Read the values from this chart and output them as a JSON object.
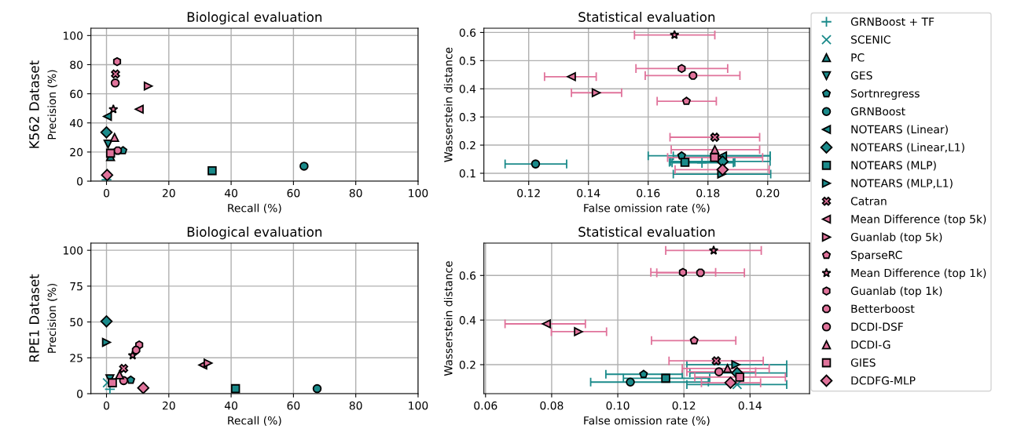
{
  "chart_data": [
    {
      "type": "scatter",
      "title": "Biological evaluation",
      "xlabel": "Recall (%)",
      "ylabel": "Precision (%)",
      "annotations": [
        "K562 Dataset"
      ],
      "xlim": [
        -5,
        100
      ],
      "ylim": [
        0,
        105
      ],
      "xticks": [
        0,
        20,
        40,
        60,
        80,
        100
      ],
      "yticks": [
        0,
        20,
        40,
        60,
        80,
        100
      ],
      "grid": true,
      "series": [
        {
          "color": "#1a8a8a",
          "marker": "cross",
          "x": [
            0
          ],
          "values": [
            1
          ]
        },
        {
          "color": "#1a8a8a",
          "marker": "cross",
          "x": [
            null
          ],
          "values": [
            null
          ]
        },
        {
          "color": "#1a8a8a",
          "marker": "triangle",
          "x": [
            1.3
          ],
          "values": [
            16.8
          ]
        },
        {
          "color": "#1a8a8a",
          "x": [
            0.5
          ],
          "values": [
            25.5
          ]
        },
        {
          "color": "#1a8a8a",
          "x": [
            5.3
          ],
          "values": [
            21
          ]
        },
        {
          "color": "#1a8a8a",
          "marker": "circle",
          "x": [
            63.4
          ],
          "values": [
            10.3
          ]
        },
        {
          "color": "#1a8a8a",
          "x": [
            0.3
          ],
          "values": [
            44.5
          ]
        },
        {
          "color": "#1a8a8a",
          "marker": "diamond",
          "x": [
            0
          ],
          "values": [
            33.5
          ]
        },
        {
          "color": "#1a8a8a",
          "marker": "square",
          "x": [
            33.9
          ],
          "values": [
            7.2
          ]
        },
        {
          "color": "#1a8a8a",
          "x": [
            null
          ],
          "values": [
            null
          ]
        },
        {
          "color": "#e0739b",
          "x": [
            2.9
          ],
          "values": [
            73.6
          ]
        },
        {
          "color": "#e0739b",
          "x": [
            10.5
          ],
          "values": [
            49.4
          ]
        },
        {
          "color": "#e0739b",
          "x": [
            13.4
          ],
          "values": [
            65.3
          ]
        },
        {
          "color": "#e0739b",
          "x": [
            null
          ],
          "values": [
            null
          ]
        },
        {
          "color": "#e0739b",
          "marker": "star",
          "x": [
            2.2
          ],
          "values": [
            49.4
          ]
        },
        {
          "color": "#e0739b",
          "x": [
            3.4
          ],
          "values": [
            82.1
          ]
        },
        {
          "color": "#e0739b",
          "x": [
            3.6
          ],
          "values": [
            21
          ]
        },
        {
          "color": "#e0739b",
          "marker": "circle",
          "x": [
            2.8
          ],
          "values": [
            67.4
          ]
        },
        {
          "color": "#e0739b",
          "marker": "triangle",
          "x": [
            2.6
          ],
          "values": [
            30
          ]
        },
        {
          "color": "#e0739b",
          "marker": "square",
          "x": [
            1.3
          ],
          "values": [
            19.2
          ]
        },
        {
          "color": "#e0739b",
          "marker": "diamond",
          "x": [
            0.2
          ],
          "values": [
            4.2
          ]
        }
      ]
    },
    {
      "type": "scatter",
      "title": "Statistical evaluation",
      "xlabel": "False omission rate (%)",
      "ylabel": "Wasserstein distance",
      "xlim": [
        0.105,
        0.214
      ],
      "ylim": [
        0.072,
        0.615
      ],
      "xticks": [
        {
          "value": 0.12,
          "label": "0.12"
        },
        {
          "value": 0.14,
          "label": "0.14"
        },
        {
          "value": 0.16,
          "label": "0.16"
        },
        {
          "value": 0.18,
          "label": "0.18"
        },
        {
          "value": 0.2,
          "label": "0.20"
        }
      ],
      "yticks": [
        0.1,
        0.2,
        0.3,
        0.4,
        0.5,
        0.6
      ],
      "grid": true,
      "legend": "right",
      "series": [
        {
          "name": "GRNBoost + TF",
          "color": "#1a8a8a",
          "marker": "cross",
          "x": [
            0.178
          ],
          "values": [
            0.137
          ],
          "xerrors": [
            [
              0.168,
              0.1885
            ]
          ]
        },
        {
          "name": "SCENIC",
          "color": "#1a8a8a",
          "marker": "cross",
          "x": [
            null
          ],
          "values": [
            null
          ],
          "xerrors": [
            null
          ]
        },
        {
          "name": "PC",
          "color": "#1a8a8a",
          "marker": "triangle",
          "x": [
            null
          ],
          "values": [
            null
          ],
          "xerrors": [
            null
          ]
        },
        {
          "name": "GES",
          "color": "#1a8a8a",
          "x": [
            null
          ],
          "values": [
            null
          ],
          "xerrors": [
            null
          ]
        },
        {
          "name": "Sortnregress",
          "color": "#1a8a8a",
          "x": [
            0.1712
          ],
          "values": [
            0.162
          ],
          "xerrors": [
            [
              0.16,
              0.2008
            ]
          ]
        },
        {
          "name": "GRNBoost",
          "color": "#1a8a8a",
          "marker": "circle",
          "x": [
            0.1223
          ],
          "values": [
            0.133
          ],
          "xerrors": [
            [
              0.1121,
              0.1327
            ]
          ]
        },
        {
          "name": "NOTEARS (Linear)",
          "color": "#1a8a8a",
          "x": [
            0.1849
          ],
          "values": [
            0.162
          ],
          "xerrors": [
            [
              0.1684,
              0.2008
            ]
          ]
        },
        {
          "name": "NOTEARS (Linear,L1)",
          "color": "#1a8a8a",
          "marker": "diamond",
          "x": [
            0.1849
          ],
          "values": [
            0.142
          ],
          "xerrors": [
            [
              0.1675,
              0.2008
            ]
          ]
        },
        {
          "name": "NOTEARS (MLP)",
          "color": "#1a8a8a",
          "marker": "square",
          "x": [
            0.1723
          ],
          "values": [
            0.139
          ],
          "xerrors": [
            [
              0.1671,
              0.189
            ]
          ]
        },
        {
          "name": "NOTEARS (MLP,L1)",
          "color": "#1a8a8a",
          "x": [
            0.1846
          ],
          "values": [
            0.097
          ],
          "xerrors": [
            [
              0.1684,
              0.201
            ]
          ]
        },
        {
          "name": "Catran",
          "color": "#e0739b",
          "x": [
            0.1823
          ],
          "values": [
            0.228
          ],
          "xerrors": [
            [
              0.1673,
              0.1973
            ]
          ]
        },
        {
          "name": "Mean Difference (top 5k)",
          "color": "#e0739b",
          "x": [
            0.1343
          ],
          "values": [
            0.443
          ],
          "xerrors": [
            [
              0.1253,
              0.1426
            ]
          ]
        },
        {
          "name": "Guanlab (top 5k)",
          "color": "#e0739b",
          "x": [
            0.1426
          ],
          "values": [
            0.386
          ],
          "xerrors": [
            [
              0.1343,
              0.1511
            ]
          ]
        },
        {
          "name": "SparseRC",
          "color": "#e0739b",
          "x": [
            0.1728
          ],
          "values": [
            0.356
          ],
          "xerrors": [
            [
              0.163,
              0.1828
            ]
          ]
        },
        {
          "name": "Mean Difference (top 1k)",
          "color": "#e0739b",
          "marker": "star",
          "x": [
            0.1688
          ],
          "values": [
            0.591
          ],
          "xerrors": [
            [
              0.1554,
              0.1823
            ]
          ]
        },
        {
          "name": "Guanlab (top 1k)",
          "color": "#e0739b",
          "x": [
            0.1712
          ],
          "values": [
            0.472
          ],
          "xerrors": [
            [
              0.1559,
              0.1866
            ]
          ]
        },
        {
          "name": "Betterboost",
          "color": "#e0739b",
          "x": [
            0.175
          ],
          "values": [
            0.447
          ],
          "xerrors": [
            [
              0.159,
              0.1907
            ]
          ]
        },
        {
          "name": "DCDI-DSF",
          "color": "#e0739b",
          "marker": "circle",
          "x": [
            null
          ],
          "values": [
            null
          ],
          "xerrors": [
            null
          ]
        },
        {
          "name": "DCDI-G",
          "color": "#e0739b",
          "marker": "triangle",
          "x": [
            0.1823
          ],
          "values": [
            0.184
          ],
          "xerrors": [
            [
              0.1677,
              0.1973
            ]
          ]
        },
        {
          "name": "GIES",
          "color": "#e0739b",
          "marker": "square",
          "x": [
            0.1822
          ],
          "values": [
            0.156
          ],
          "xerrors": [
            [
              0.1665,
              0.1983
            ]
          ]
        },
        {
          "name": "DCDFG-MLP",
          "color": "#e0739b",
          "marker": "diamond",
          "x": [
            0.1849
          ],
          "values": [
            0.113
          ],
          "xerrors": [
            [
              0.169,
              0.2005
            ]
          ]
        }
      ]
    },
    {
      "type": "scatter",
      "title": "Biological evaluation",
      "xlabel": "Recall (%)",
      "ylabel": "Precision (%)",
      "annotations": [
        "RPE1 Dataset"
      ],
      "xlim": [
        -5,
        100
      ],
      "ylim": [
        0,
        105
      ],
      "xticks": [
        0,
        20,
        40,
        60,
        80,
        100
      ],
      "yticks": [
        0,
        25,
        50,
        75,
        100
      ],
      "grid": true,
      "series": [
        {
          "color": "#1a8a8a",
          "marker": "cross",
          "x": [
            1.1
          ],
          "values": [
            3.1
          ]
        },
        {
          "color": "#1a8a8a",
          "marker": "cross",
          "x": [
            0.3
          ],
          "values": [
            7.6
          ]
        },
        {
          "color": "#1a8a8a",
          "marker": "triangle",
          "x": [
            null
          ],
          "values": [
            null
          ]
        },
        {
          "color": "#1a8a8a",
          "x": [
            1.1
          ],
          "values": [
            10.4
          ]
        },
        {
          "color": "#1a8a8a",
          "x": [
            7.8
          ],
          "values": [
            9.5
          ]
        },
        {
          "color": "#1a8a8a",
          "marker": "circle",
          "x": [
            67.6
          ],
          "values": [
            3.5
          ]
        },
        {
          "color": "#1a8a8a",
          "x": [
            null
          ],
          "values": [
            null
          ]
        },
        {
          "color": "#1a8a8a",
          "marker": "diamond",
          "x": [
            0
          ],
          "values": [
            50.4
          ]
        },
        {
          "color": "#1a8a8a",
          "marker": "square",
          "x": [
            41.4
          ],
          "values": [
            3.5
          ]
        },
        {
          "color": "#1a8a8a",
          "x": [
            0
          ],
          "values": [
            35.8
          ]
        },
        {
          "color": "#e0739b",
          "x": [
            5.5
          ],
          "values": [
            17.6
          ]
        },
        {
          "color": "#e0739b",
          "x": [
            30.9
          ],
          "values": [
            20
          ]
        },
        {
          "color": "#e0739b",
          "x": [
            32.6
          ],
          "values": [
            21.3
          ]
        },
        {
          "color": "#e0739b",
          "x": [
            null
          ],
          "values": [
            null
          ]
        },
        {
          "color": "#e0739b",
          "marker": "star",
          "x": [
            8.4
          ],
          "values": [
            26.7
          ]
        },
        {
          "color": "#e0739b",
          "x": [
            10.5
          ],
          "values": [
            34
          ]
        },
        {
          "color": "#e0739b",
          "x": [
            9.5
          ],
          "values": [
            30.4
          ]
        },
        {
          "color": "#e0739b",
          "marker": "circle",
          "x": [
            5.5
          ],
          "values": [
            9.1
          ]
        },
        {
          "color": "#e0739b",
          "marker": "triangle",
          "x": [
            4.2
          ],
          "values": [
            13.1
          ]
        },
        {
          "color": "#e0739b",
          "marker": "square",
          "x": [
            1.9
          ],
          "values": [
            7.6
          ]
        },
        {
          "color": "#e0739b",
          "marker": "diamond",
          "x": [
            11.8
          ],
          "values": [
            4
          ]
        }
      ]
    },
    {
      "type": "scatter",
      "title": "Statistical evaluation",
      "xlabel": "False omission rate (%)",
      "ylabel": "Wasserstein distance",
      "xlim": [
        0.0595,
        0.158
      ],
      "ylim": [
        0.07,
        0.745
      ],
      "xticks": [
        {
          "value": 0.06,
          "label": "0.06"
        },
        {
          "value": 0.08,
          "label": "0.08"
        },
        {
          "value": 0.1,
          "label": "0.10"
        },
        {
          "value": 0.12,
          "label": "0.12"
        },
        {
          "value": 0.14,
          "label": "0.14"
        }
      ],
      "yticks": [
        0.2,
        0.4,
        0.6
      ],
      "grid": true,
      "series": [
        {
          "color": "#1a8a8a",
          "marker": "cross",
          "x": [
            null
          ],
          "values": [
            null
          ],
          "xerrors": [
            null
          ]
        },
        {
          "color": "#1a8a8a",
          "marker": "cross",
          "x": [
            0.1361
          ],
          "values": [
            0.111
          ],
          "xerrors": [
            [
              0.1209,
              0.1511
            ]
          ]
        },
        {
          "color": "#1a8a8a",
          "marker": "triangle",
          "x": [
            null
          ],
          "values": [
            null
          ],
          "xerrors": [
            null
          ]
        },
        {
          "color": "#1a8a8a",
          "x": [
            null
          ],
          "values": [
            null
          ],
          "xerrors": [
            null
          ]
        },
        {
          "color": "#1a8a8a",
          "x": [
            0.1078
          ],
          "values": [
            0.157
          ],
          "xerrors": [
            [
              0.0964,
              0.1195
            ]
          ]
        },
        {
          "color": "#1a8a8a",
          "marker": "circle",
          "x": [
            0.1038
          ],
          "values": [
            0.122
          ],
          "xerrors": [
            [
              0.0918,
              0.1274
            ]
          ]
        },
        {
          "color": "#1a8a8a",
          "x": [
            null
          ],
          "values": [
            null
          ],
          "xerrors": [
            null
          ]
        },
        {
          "color": "#1a8a8a",
          "marker": "diamond",
          "x": [
            0.1361
          ],
          "values": [
            0.163
          ],
          "xerrors": [
            [
              0.1218,
              0.1511
            ]
          ]
        },
        {
          "color": "#1a8a8a",
          "marker": "square",
          "x": [
            0.1145
          ],
          "values": [
            0.139
          ],
          "xerrors": [
            [
              0.1017,
              0.1278
            ]
          ]
        },
        {
          "color": "#1a8a8a",
          "x": [
            0.1357
          ],
          "values": [
            0.2
          ],
          "xerrors": [
            [
              0.1209,
              0.1511
            ]
          ]
        },
        {
          "color": "#e0739b",
          "x": [
            0.1298
          ],
          "values": [
            0.217
          ],
          "xerrors": [
            [
              0.1155,
              0.144
            ]
          ]
        },
        {
          "color": "#e0739b",
          "x": [
            0.0784
          ],
          "values": [
            0.383
          ],
          "xerrors": [
            [
              0.0659,
              0.0902
            ]
          ]
        },
        {
          "color": "#e0739b",
          "x": [
            0.0881
          ],
          "values": [
            0.348
          ],
          "xerrors": [
            [
              0.0799,
              0.0966
            ]
          ]
        },
        {
          "color": "#e0739b",
          "x": [
            0.1231
          ],
          "values": [
            0.308
          ],
          "xerrors": [
            [
              0.1102,
              0.1357
            ]
          ]
        },
        {
          "color": "#e0739b",
          "marker": "star",
          "x": [
            0.129
          ],
          "values": [
            0.712
          ],
          "xerrors": [
            [
              0.1145,
              0.1434
            ]
          ]
        },
        {
          "color": "#e0739b",
          "x": [
            0.1197
          ],
          "values": [
            0.614
          ],
          "xerrors": [
            [
              0.11,
              0.1296
            ]
          ]
        },
        {
          "color": "#e0739b",
          "x": [
            0.125
          ],
          "values": [
            0.612
          ],
          "xerrors": [
            [
              0.1118,
              0.1383
            ]
          ]
        },
        {
          "color": "#e0739b",
          "marker": "circle",
          "x": [
            0.1306
          ],
          "values": [
            0.168
          ],
          "xerrors": [
            [
              0.1209,
              0.1417
            ]
          ]
        },
        {
          "color": "#e0739b",
          "marker": "triangle",
          "x": [
            0.1332
          ],
          "values": [
            0.183
          ],
          "xerrors": [
            [
              0.1195,
              0.1458
            ]
          ]
        },
        {
          "color": "#e0739b",
          "marker": "square",
          "x": [
            0.1369
          ],
          "values": [
            0.144
          ],
          "xerrors": [
            [
              0.1233,
              0.1507
            ]
          ]
        },
        {
          "color": "#e0739b",
          "marker": "diamond",
          "x": [
            0.1341
          ],
          "values": [
            0.119
          ],
          "xerrors": [
            [
              0.1253,
              0.1432
            ]
          ]
        }
      ]
    }
  ]
}
